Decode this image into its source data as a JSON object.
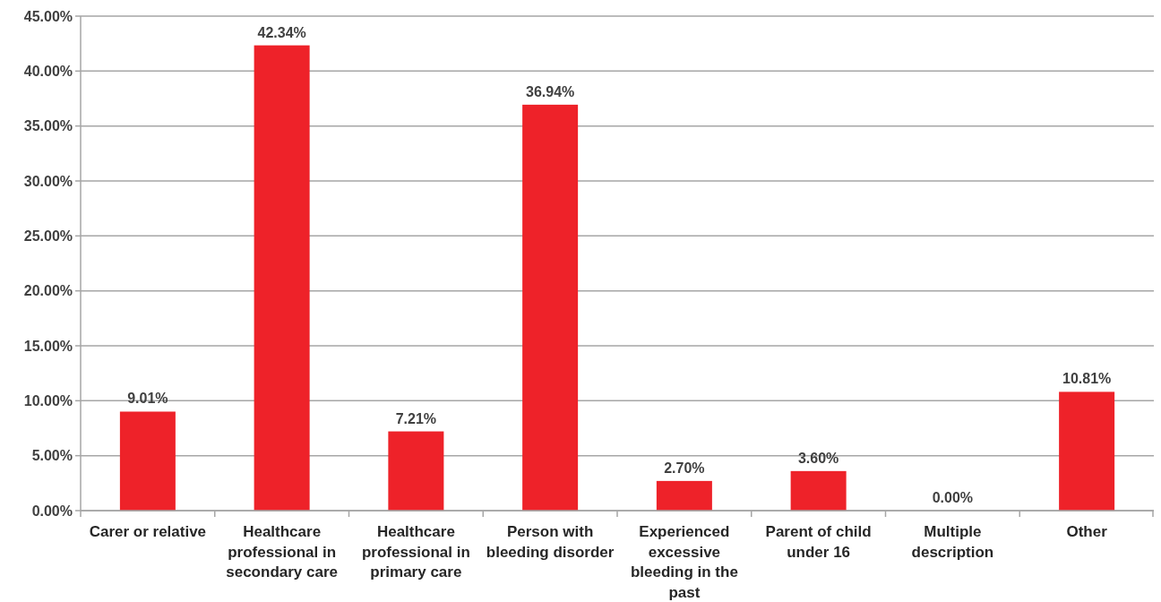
{
  "chart_data": {
    "type": "bar",
    "categories": [
      "Carer or relative",
      "Healthcare professional in secondary care",
      "Healthcare professional in primary care",
      "Person with bleeding disorder",
      "Experienced excessive bleeding in the past",
      "Parent of child under 16",
      "Multiple description",
      "Other"
    ],
    "values": [
      9.01,
      42.34,
      7.21,
      36.94,
      2.7,
      3.6,
      0,
      10.81
    ],
    "color": "#ee2229",
    "value_labels": [
      "9.01%",
      "42.34%",
      "7.21%",
      "36.94%",
      "2.70%",
      "3.60%",
      "0.00%",
      "10.81%"
    ],
    "ylim": [
      0,
      45
    ],
    "yticks": [
      {
        "value": 0,
        "label": "0.00%"
      },
      {
        "value": 5,
        "label": "5.00%"
      },
      {
        "value": 10,
        "label": "10.00%"
      },
      {
        "value": 15,
        "label": "15.00%"
      },
      {
        "value": 20,
        "label": "20.00%"
      },
      {
        "value": 25,
        "label": "25.00%"
      },
      {
        "value": 30,
        "label": "30.00%"
      },
      {
        "value": 35,
        "label": "35.00%"
      },
      {
        "value": 40,
        "label": "40.00%"
      },
      {
        "value": 45,
        "label": "45.00%"
      }
    ],
    "grid": "y"
  }
}
